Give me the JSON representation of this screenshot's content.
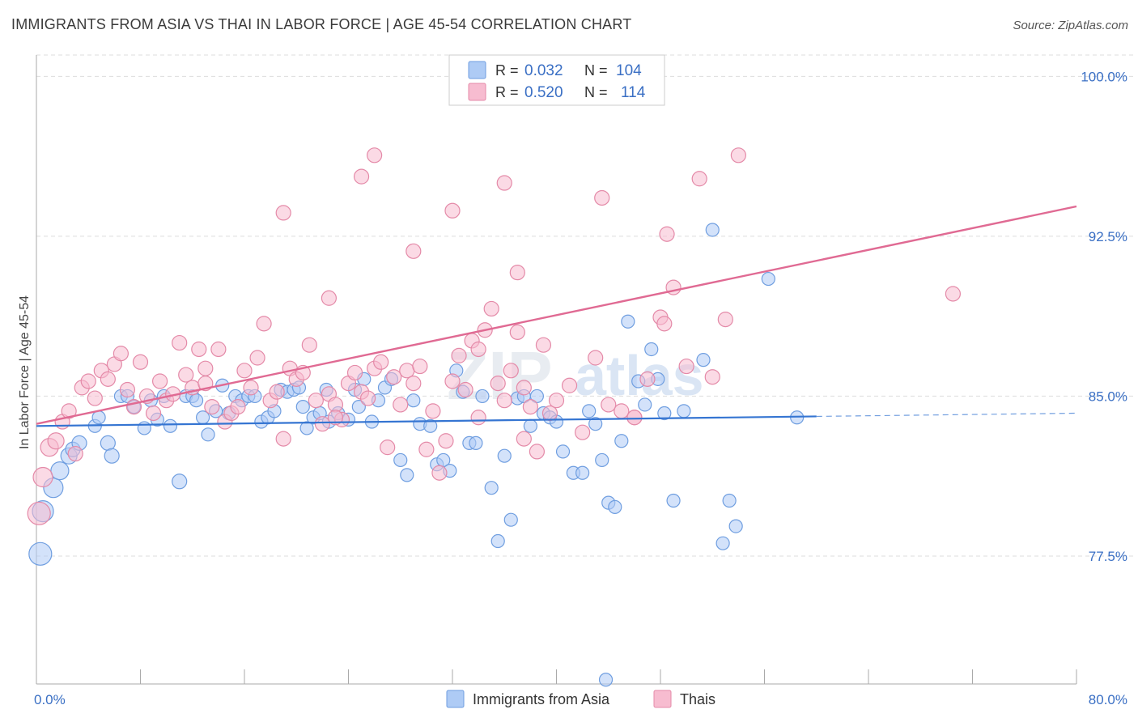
{
  "title": "IMMIGRANTS FROM ASIA VS THAI IN LABOR FORCE | AGE 45-54 CORRELATION CHART",
  "source": "Source: ZipAtlas.com",
  "watermark": {
    "zip": "ZIP",
    "atlas": "atlas"
  },
  "colors": {
    "blue_fill": "#aecbf5",
    "blue_stroke": "#6f9ee0",
    "blue_line": "#3575d2",
    "pink_fill": "#f7bcd0",
    "pink_stroke": "#e48aa8",
    "pink_line": "#e06a93",
    "axis_label": "#3a6fc4",
    "grid": "#dddddd"
  },
  "legend": {
    "rows": [
      {
        "r_label": "R =",
        "r_value": "0.032",
        "n_label": "N =",
        "n_value": "104"
      },
      {
        "r_label": "R =",
        "r_value": "0.520",
        "n_label": "N =",
        "n_value": "114"
      }
    ]
  },
  "chart_data": {
    "type": "scatter",
    "title": "IMMIGRANTS FROM ASIA VS THAI IN LABOR FORCE | AGE 45-54 CORRELATION CHART",
    "xlabel": "",
    "ylabel": "In Labor Force | Age 45-54",
    "xlim": [
      0,
      80
    ],
    "ylim": [
      71.5,
      101
    ],
    "x_tick_labels": [
      "0.0%",
      "80.0%"
    ],
    "y_ticks": [
      77.5,
      85.0,
      92.5,
      100.0
    ],
    "y_tick_labels": [
      "77.5%",
      "85.0%",
      "92.5%",
      "100.0%"
    ],
    "grid": true,
    "legend_position": "bottom",
    "series": [
      {
        "name": "Immigrants from Asia",
        "trend": {
          "x": [
            0,
            60
          ],
          "y": [
            83.6,
            84.05
          ],
          "dashed_to": [
            80,
            84.2
          ]
        },
        "points": [
          [
            0.3,
            77.6,
            14
          ],
          [
            0.5,
            79.6,
            13
          ],
          [
            1.3,
            80.7,
            12
          ],
          [
            1.8,
            81.5,
            11
          ],
          [
            2.5,
            82.2,
            10
          ],
          [
            2.8,
            82.5,
            9
          ],
          [
            3.3,
            82.8,
            9
          ],
          [
            4.5,
            83.6,
            8
          ],
          [
            4.8,
            84.0,
            8
          ],
          [
            5.5,
            82.8,
            9
          ],
          [
            5.8,
            82.2,
            9
          ],
          [
            6.5,
            85.0,
            8
          ],
          [
            7.0,
            85.0,
            8
          ],
          [
            7.5,
            84.5,
            8
          ],
          [
            8.3,
            83.5,
            8
          ],
          [
            8.8,
            84.8,
            8
          ],
          [
            9.3,
            83.9,
            8
          ],
          [
            9.8,
            85.0,
            8
          ],
          [
            10.3,
            83.6,
            8
          ],
          [
            11.0,
            81.0,
            9
          ],
          [
            11.5,
            85.0,
            8
          ],
          [
            12.0,
            85.0,
            8
          ],
          [
            12.3,
            84.8,
            8
          ],
          [
            12.8,
            84.0,
            8
          ],
          [
            13.2,
            83.2,
            8
          ],
          [
            13.8,
            84.3,
            8
          ],
          [
            14.3,
            85.5,
            8
          ],
          [
            14.8,
            84.2,
            8
          ],
          [
            15.3,
            85.0,
            8
          ],
          [
            15.8,
            84.8,
            8
          ],
          [
            16.3,
            85.0,
            8
          ],
          [
            16.8,
            85.0,
            8
          ],
          [
            17.3,
            83.8,
            8
          ],
          [
            17.8,
            84.0,
            8
          ],
          [
            18.3,
            84.3,
            8
          ],
          [
            18.8,
            85.3,
            8
          ],
          [
            19.3,
            85.2,
            8
          ],
          [
            19.8,
            85.3,
            8
          ],
          [
            20.2,
            85.4,
            8
          ],
          [
            20.5,
            84.5,
            8
          ],
          [
            20.8,
            83.5,
            8
          ],
          [
            21.3,
            84.0,
            8
          ],
          [
            21.8,
            84.2,
            8
          ],
          [
            22.3,
            85.3,
            8
          ],
          [
            22.5,
            83.8,
            8
          ],
          [
            23.2,
            84.2,
            8
          ],
          [
            24.0,
            83.9,
            8
          ],
          [
            24.5,
            85.3,
            8
          ],
          [
            24.8,
            84.5,
            8
          ],
          [
            25.2,
            85.8,
            8
          ],
          [
            25.8,
            83.8,
            8
          ],
          [
            26.3,
            84.8,
            8
          ],
          [
            26.8,
            85.4,
            8
          ],
          [
            27.3,
            85.8,
            8
          ],
          [
            28.0,
            82.0,
            8
          ],
          [
            28.5,
            81.3,
            8
          ],
          [
            29.0,
            84.8,
            8
          ],
          [
            29.5,
            83.7,
            8
          ],
          [
            30.3,
            83.6,
            8
          ],
          [
            30.8,
            81.8,
            8
          ],
          [
            31.3,
            82.0,
            8
          ],
          [
            31.8,
            81.5,
            8
          ],
          [
            32.3,
            86.2,
            8
          ],
          [
            32.8,
            85.2,
            8
          ],
          [
            33.3,
            82.8,
            8
          ],
          [
            33.8,
            82.8,
            8
          ],
          [
            34.3,
            85.0,
            8
          ],
          [
            35.0,
            80.7,
            8
          ],
          [
            35.5,
            78.2,
            8
          ],
          [
            36.0,
            82.2,
            8
          ],
          [
            36.5,
            79.2,
            8
          ],
          [
            37.0,
            84.9,
            8
          ],
          [
            37.5,
            85.0,
            8
          ],
          [
            38.0,
            83.6,
            8
          ],
          [
            38.5,
            85.0,
            8
          ],
          [
            39.0,
            84.2,
            8
          ],
          [
            39.5,
            84.0,
            8
          ],
          [
            40.0,
            83.8,
            8
          ],
          [
            40.5,
            82.4,
            8
          ],
          [
            41.3,
            81.4,
            8
          ],
          [
            42.0,
            81.4,
            8
          ],
          [
            42.5,
            84.3,
            8
          ],
          [
            43.0,
            83.7,
            8
          ],
          [
            43.5,
            82.0,
            8
          ],
          [
            44.0,
            80.0,
            8
          ],
          [
            44.5,
            79.8,
            8
          ],
          [
            45.0,
            82.9,
            8
          ],
          [
            45.5,
            88.5,
            8
          ],
          [
            46.3,
            85.7,
            8
          ],
          [
            46.8,
            84.6,
            8
          ],
          [
            47.3,
            87.2,
            8
          ],
          [
            47.8,
            85.8,
            8
          ],
          [
            48.3,
            84.2,
            8
          ],
          [
            49.0,
            80.1,
            8
          ],
          [
            49.8,
            84.3,
            8
          ],
          [
            51.3,
            86.7,
            8
          ],
          [
            52.0,
            92.8,
            8
          ],
          [
            52.8,
            78.1,
            8
          ],
          [
            53.3,
            80.1,
            8
          ],
          [
            53.8,
            78.9,
            8
          ],
          [
            56.3,
            90.5,
            8
          ],
          [
            58.5,
            84.0,
            8
          ],
          [
            43.8,
            71.7,
            8
          ]
        ]
      },
      {
        "name": "Thais",
        "trend": {
          "x": [
            0,
            80
          ],
          "y": [
            83.7,
            93.9
          ]
        },
        "points": [
          [
            0.2,
            79.5,
            14
          ],
          [
            0.5,
            81.2,
            12
          ],
          [
            1.0,
            82.6,
            11
          ],
          [
            1.5,
            82.9,
            10
          ],
          [
            2.0,
            83.8,
            9
          ],
          [
            2.5,
            84.3,
            9
          ],
          [
            3.0,
            82.3,
            9
          ],
          [
            3.5,
            85.4,
            9
          ],
          [
            4.0,
            85.7,
            9
          ],
          [
            4.5,
            84.9,
            9
          ],
          [
            5.0,
            86.2,
            9
          ],
          [
            5.5,
            85.8,
            9
          ],
          [
            6.0,
            86.5,
            9
          ],
          [
            6.5,
            87.0,
            9
          ],
          [
            7.0,
            85.3,
            9
          ],
          [
            7.5,
            84.5,
            9
          ],
          [
            8.0,
            86.6,
            9
          ],
          [
            8.5,
            85.0,
            9
          ],
          [
            9.0,
            84.2,
            9
          ],
          [
            9.5,
            85.7,
            9
          ],
          [
            10.0,
            84.8,
            9
          ],
          [
            10.5,
            85.1,
            9
          ],
          [
            11.0,
            87.5,
            9
          ],
          [
            11.5,
            86.0,
            9
          ],
          [
            12.0,
            85.4,
            9
          ],
          [
            12.5,
            87.2,
            9
          ],
          [
            13.0,
            85.6,
            9
          ],
          [
            13.5,
            84.5,
            9
          ],
          [
            14.0,
            87.2,
            9
          ],
          [
            14.5,
            83.8,
            9
          ],
          [
            15.0,
            84.2,
            9
          ],
          [
            15.5,
            84.5,
            9
          ],
          [
            16.0,
            86.2,
            9
          ],
          [
            16.5,
            85.4,
            9
          ],
          [
            17.0,
            86.8,
            9
          ],
          [
            17.5,
            88.4,
            9
          ],
          [
            18.0,
            84.8,
            9
          ],
          [
            18.5,
            85.2,
            9
          ],
          [
            19.0,
            83.0,
            9
          ],
          [
            19.5,
            86.3,
            9
          ],
          [
            20.0,
            85.8,
            9
          ],
          [
            20.5,
            86.1,
            9
          ],
          [
            21.0,
            87.4,
            9
          ],
          [
            21.5,
            84.8,
            9
          ],
          [
            22.0,
            83.7,
            9
          ],
          [
            22.5,
            85.1,
            9
          ],
          [
            23.0,
            84.6,
            9
          ],
          [
            23.5,
            83.9,
            9
          ],
          [
            24.0,
            85.6,
            9
          ],
          [
            24.5,
            86.1,
            9
          ],
          [
            25.0,
            85.2,
            9
          ],
          [
            25.5,
            84.9,
            9
          ],
          [
            26.0,
            86.3,
            9
          ],
          [
            26.5,
            86.6,
            9
          ],
          [
            27.0,
            82.6,
            9
          ],
          [
            27.5,
            85.9,
            9
          ],
          [
            28.0,
            84.6,
            9
          ],
          [
            28.5,
            86.2,
            9
          ],
          [
            29.0,
            85.6,
            9
          ],
          [
            29.5,
            86.4,
            9
          ],
          [
            30.0,
            82.5,
            9
          ],
          [
            30.5,
            84.3,
            9
          ],
          [
            31.0,
            81.4,
            9
          ],
          [
            31.5,
            82.9,
            9
          ],
          [
            32.0,
            85.7,
            9
          ],
          [
            32.5,
            86.9,
            9
          ],
          [
            33.0,
            85.3,
            9
          ],
          [
            33.5,
            87.6,
            9
          ],
          [
            34.0,
            87.2,
            9
          ],
          [
            34.5,
            88.1,
            9
          ],
          [
            35.0,
            89.1,
            9
          ],
          [
            35.5,
            85.6,
            9
          ],
          [
            36.0,
            84.8,
            9
          ],
          [
            36.5,
            86.2,
            9
          ],
          [
            37.0,
            88.0,
            9
          ],
          [
            37.5,
            85.4,
            9
          ],
          [
            38.0,
            84.5,
            9
          ],
          [
            38.5,
            82.4,
            9
          ],
          [
            39.0,
            87.4,
            9
          ],
          [
            39.5,
            84.2,
            9
          ],
          [
            40.0,
            84.8,
            9
          ],
          [
            41.0,
            85.5,
            9
          ],
          [
            42.0,
            83.3,
            9
          ],
          [
            43.0,
            86.8,
            9
          ],
          [
            44.0,
            84.6,
            9
          ],
          [
            45.0,
            84.3,
            9
          ],
          [
            46.0,
            84.0,
            9
          ],
          [
            47.0,
            85.8,
            9
          ],
          [
            48.0,
            88.7,
            9
          ],
          [
            48.3,
            88.4,
            9
          ],
          [
            48.5,
            92.6,
            9
          ],
          [
            49.0,
            90.1,
            9
          ],
          [
            50.0,
            86.4,
            9
          ],
          [
            51.0,
            95.2,
            9
          ],
          [
            52.0,
            85.9,
            9
          ],
          [
            53.0,
            88.6,
            9
          ],
          [
            54.0,
            96.3,
            9
          ],
          [
            70.5,
            89.8,
            9
          ],
          [
            25.0,
            95.3,
            9
          ],
          [
            26.0,
            96.3,
            9
          ],
          [
            22.5,
            89.6,
            9
          ],
          [
            19.0,
            93.6,
            9
          ],
          [
            32.0,
            93.7,
            9
          ],
          [
            29.0,
            91.8,
            9
          ],
          [
            36.0,
            95.0,
            9
          ],
          [
            37.0,
            90.8,
            9
          ],
          [
            41.0,
            100.1,
            9
          ],
          [
            43.5,
            94.3,
            9
          ],
          [
            37.5,
            83.0,
            9
          ],
          [
            13.0,
            86.3,
            9
          ],
          [
            23.0,
            84.0,
            9
          ],
          [
            34.0,
            84.0,
            9
          ],
          [
            46.0,
            84.0,
            9
          ]
        ]
      }
    ]
  }
}
